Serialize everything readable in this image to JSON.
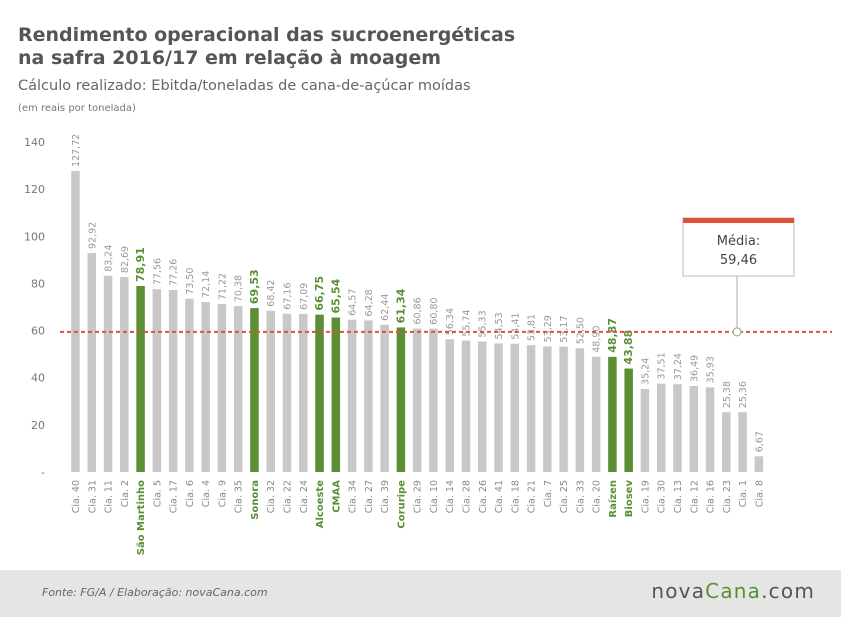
{
  "title_lines": [
    "Rendimento operacional das sucroenergéticas",
    "na safra 2016/17 em relação à moagem"
  ],
  "subtitle": "Cálculo realizado: Ebitda/toneladas de cana-de-açúcar moídas",
  "unit_note": "(em reais por tonelada)",
  "source": "Fonte:  FG/A  / Elaboração:  novaCana.com",
  "brand": {
    "part1": "nova",
    "part2": "Cana",
    "part3": ".com"
  },
  "colors": {
    "bar_default": "#c8c8c8",
    "bar_highlight": "#5a8f34",
    "average_line": "#e0513a",
    "footer_bg": "#e5e5e3"
  },
  "chart_data": {
    "type": "bar",
    "categories": [
      "Cia. 40",
      "Cia. 31",
      "Cia. 11",
      "Cia. 2",
      "São Martinho",
      "Cia. 5",
      "Cia. 17",
      "Cia. 6",
      "Cia. 4",
      "Cia. 9",
      "Cia. 35",
      "Sonora",
      "Cia. 32",
      "Cia. 22",
      "Cia. 24",
      "Alcoeste",
      "CMAA",
      "Cia. 34",
      "Cia. 27",
      "Cia. 39",
      "Coruripe",
      "Cia. 29",
      "Cia. 10",
      "Cia. 14",
      "Cia. 28",
      "Cia. 26",
      "Cia. 41",
      "Cia. 18",
      "Cia. 21",
      "Cia. 7",
      "Cia. 25",
      "Cia. 33",
      "Cia. 20",
      "Raízen",
      "Biosev",
      "Cia. 19",
      "Cia. 30",
      "Cia. 13",
      "Cia. 12",
      "Cia. 16",
      "Cia. 23",
      "Cia. 1",
      "Cia. 8"
    ],
    "values": [
      127.72,
      92.92,
      83.24,
      82.69,
      78.91,
      77.56,
      77.26,
      73.5,
      72.14,
      71.22,
      70.38,
      69.53,
      68.42,
      67.16,
      67.09,
      66.75,
      65.54,
      64.57,
      64.28,
      62.44,
      61.34,
      60.86,
      60.8,
      56.34,
      55.74,
      55.33,
      54.53,
      54.41,
      53.81,
      53.29,
      53.17,
      52.5,
      48.9,
      48.87,
      43.88,
      35.24,
      37.51,
      37.24,
      36.49,
      35.93,
      25.38,
      25.36,
      6.67
    ],
    "value_labels": [
      "127,72",
      "92,92",
      "83,24",
      "82,69",
      "78,91",
      "77,56",
      "77,26",
      "73,50",
      "72,14",
      "71,22",
      "70,38",
      "69,53",
      "68,42",
      "67,16",
      "67,09",
      "66,75",
      "65,54",
      "64,57",
      "64,28",
      "62,44",
      "61,34",
      "60,86",
      "60,80",
      "56,34",
      "55,74",
      "55,33",
      "54,53",
      "54,41",
      "53,81",
      "53,29",
      "53,17",
      "52,50",
      "48,90",
      "48,87",
      "43,88",
      "35,24",
      "37,51",
      "37,24",
      "36,49",
      "35,93",
      "25,38",
      "25,36",
      "6,67"
    ],
    "highlighted": [
      "São Martinho",
      "Sonora",
      "Alcoeste",
      "CMAA",
      "Coruripe",
      "Raízen",
      "Biosev"
    ],
    "y_ticks": [
      0,
      20,
      40,
      60,
      80,
      100,
      120,
      140
    ],
    "y_tick_labels": [
      "-",
      "20",
      "40",
      "60",
      "80",
      "100",
      "120",
      "140"
    ],
    "ylim": [
      0,
      140
    ],
    "grid": false,
    "average": {
      "label": "Média:",
      "value": 59.46,
      "value_label": "59,46"
    }
  }
}
